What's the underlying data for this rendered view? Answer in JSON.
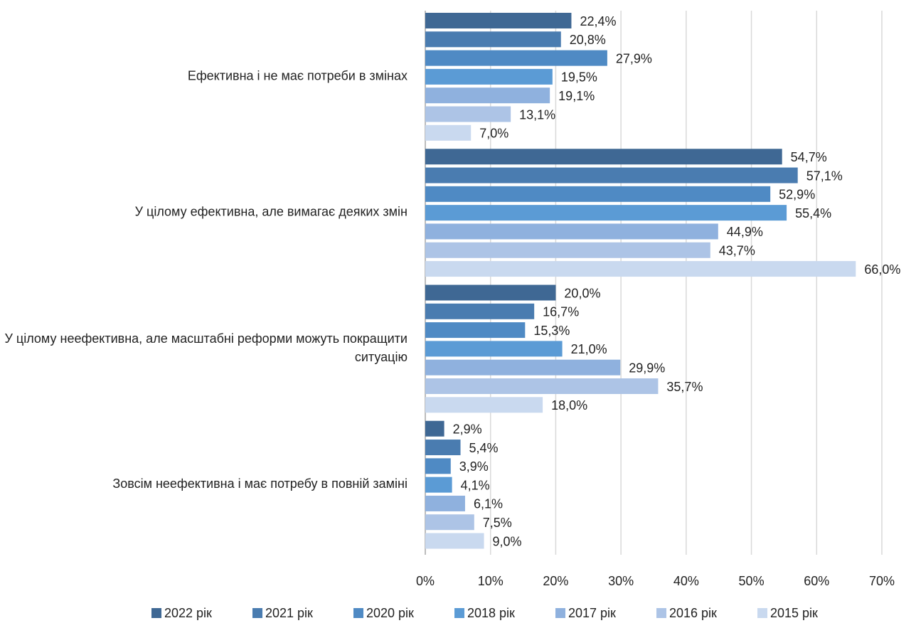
{
  "chart_data": {
    "type": "barh",
    "categories": [
      "Ефективна і не має потреби в змінах",
      "У цілому ефективна, але вимагає деяких змін",
      "У цілому неефективна, але масштабні реформи можуть покращити ситуацію",
      "Зовсім неефективна і має потребу в повній заміні"
    ],
    "series": [
      {
        "name": "2022 рік",
        "color": "#3f6894",
        "values": [
          22.4,
          54.7,
          20.0,
          2.9
        ],
        "value_labels": [
          "22,4%",
          "54,7%",
          "20,0%",
          "2,9%"
        ]
      },
      {
        "name": "2021 рік",
        "color": "#4a7cb0",
        "values": [
          20.8,
          57.1,
          16.7,
          5.4
        ],
        "value_labels": [
          "20,8%",
          "57,1%",
          "16,7%",
          "5,4%"
        ]
      },
      {
        "name": "2020 рік",
        "color": "#4f8ac4",
        "values": [
          27.9,
          52.9,
          15.3,
          3.9
        ],
        "value_labels": [
          "27,9%",
          "52,9%",
          "15,3%",
          "3,9%"
        ]
      },
      {
        "name": "2018 рік",
        "color": "#5b9bd5",
        "values": [
          19.5,
          55.4,
          21.0,
          4.1
        ],
        "value_labels": [
          "19,5%",
          "55,4%",
          "21,0%",
          "4,1%"
        ]
      },
      {
        "name": "2017 рік",
        "color": "#8fb1de",
        "values": [
          19.1,
          44.9,
          29.9,
          6.1
        ],
        "value_labels": [
          "19,1%",
          "44,9%",
          "29,9%",
          "6,1%"
        ]
      },
      {
        "name": "2016 рік",
        "color": "#adc4e6",
        "values": [
          13.1,
          43.7,
          35.7,
          7.5
        ],
        "value_labels": [
          "13,1%",
          "43,7%",
          "35,7%",
          "7,5%"
        ]
      },
      {
        "name": "2015 рік",
        "color": "#c9d9ef",
        "values": [
          7.0,
          66.0,
          18.0,
          9.0
        ],
        "value_labels": [
          "7,0%",
          "66,0%",
          "18,0%",
          "9,0%"
        ]
      }
    ],
    "xlim": [
      0,
      70
    ],
    "xticks": [
      {
        "value": 0,
        "label": "0%"
      },
      {
        "value": 10,
        "label": "10%"
      },
      {
        "value": 20,
        "label": "20%"
      },
      {
        "value": 30,
        "label": "30%"
      },
      {
        "value": 40,
        "label": "40%"
      },
      {
        "value": 50,
        "label": "50%"
      },
      {
        "value": 60,
        "label": "60%"
      },
      {
        "value": 70,
        "label": "70%"
      }
    ],
    "grid": true,
    "legend": "bottom"
  }
}
